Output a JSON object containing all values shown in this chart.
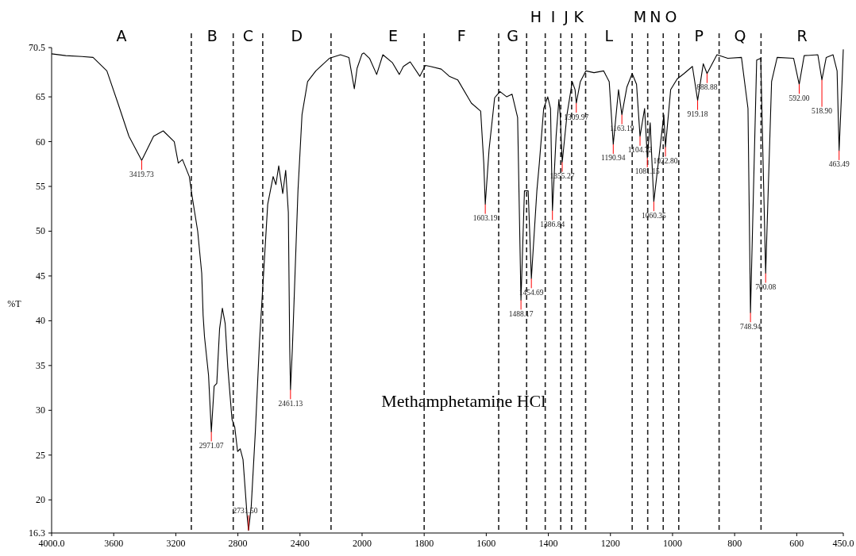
{
  "chart_data": [
    {
      "type": "line",
      "ylabel": "%T",
      "xlim": [
        4000,
        2000
      ],
      "ylim": [
        16.3,
        70.5
      ],
      "xticks": [
        {
          "value": 4000,
          "label": "4000.0"
        },
        3600,
        3200,
        2800,
        2400,
        2000
      ],
      "yticks": [
        16.3,
        20,
        25,
        30,
        35,
        40,
        45,
        50,
        55,
        60,
        65,
        70.5
      ],
      "series": [
        {
          "color": "#000000",
          "x": [
            4000,
            3909,
            3805,
            3733,
            3644,
            3573,
            3502,
            3419.73,
            3343,
            3281,
            3210,
            3184,
            3157,
            3113,
            3095,
            3059,
            3033,
            3024,
            3015,
            2989,
            2971.07,
            2953,
            2936,
            2918,
            2900,
            2882,
            2865,
            2838,
            2820,
            2802,
            2785,
            2767,
            2740,
            2731.5,
            2714,
            2687,
            2661,
            2634,
            2608,
            2573,
            2555,
            2537,
            2511,
            2492,
            2475,
            2466,
            2461.13,
            2449,
            2432,
            2413,
            2387,
            2351,
            2298,
            2211,
            2139,
            2085,
            2050,
            2032,
            2000
          ],
          "values": [
            69.8,
            69.6,
            69.5,
            69.4,
            67.9,
            64.3,
            60.6,
            57.9,
            60.6,
            61.2,
            60.0,
            57.6,
            58.0,
            56.1,
            53.9,
            50.0,
            45.3,
            40.6,
            38.2,
            33.9,
            27.6,
            32.7,
            33.0,
            39.1,
            41.4,
            39.7,
            34.8,
            29.0,
            28.1,
            25.4,
            25.7,
            24.5,
            18.1,
            16.6,
            19.3,
            27.8,
            37.6,
            45.4,
            53.0,
            56.1,
            55.2,
            57.3,
            54.2,
            56.8,
            52.1,
            36.9,
            32.3,
            36.9,
            45.2,
            54.5,
            63.0,
            66.7,
            67.9,
            69.3,
            69.7,
            69.4,
            65.9,
            68.2,
            69.8
          ]
        }
      ],
      "ref_lines": [
        {
          "axis": "x",
          "value": 3100,
          "color": "#222222",
          "line_style": "dashed"
        },
        {
          "axis": "x",
          "value": 2830,
          "color": "#222222",
          "line_style": "dashed"
        },
        {
          "axis": "x",
          "value": 2640,
          "color": "#222222",
          "line_style": "dashed"
        },
        {
          "axis": "x",
          "value": 2200,
          "color": "#222222",
          "line_style": "dashed"
        }
      ],
      "annotations": [
        "A",
        "B",
        "C",
        "D",
        {
          "text": "3419.73",
          "x": 3419.73,
          "y": 57.9
        },
        {
          "text": "2971.07",
          "x": 2971.07,
          "y": 27.6
        },
        {
          "text": "2731.50",
          "x": 2731.5,
          "y": 16.6
        },
        {
          "text": "2461.13",
          "x": 2461.13,
          "y": 32.3
        }
      ]
    },
    {
      "type": "line",
      "title": "Methamphetamine HCl",
      "xlim": [
        2000,
        450
      ],
      "ylim": [
        16.3,
        70.5
      ],
      "tick_labels": "x",
      "xticks": [
        1800,
        1600,
        1400,
        1200,
        1000,
        800,
        600,
        {
          "value": 450,
          "label": "450.0"
        }
      ],
      "series": [
        {
          "color": "#000000",
          "x": [
            2000,
            1994,
            1976,
            1953,
            1933,
            1902,
            1880,
            1867,
            1845,
            1814,
            1796,
            1780,
            1745,
            1719,
            1692,
            1648,
            1618,
            1608,
            1603.19,
            1591,
            1573,
            1556,
            1534,
            1517,
            1499,
            1488.17,
            1477,
            1465,
            1454.69,
            1437,
            1429,
            1415,
            1402,
            1393,
            1386.84,
            1375,
            1366,
            1362,
            1355.27,
            1340,
            1323,
            1314,
            1309.97,
            1297,
            1279,
            1253,
            1222,
            1204,
            1190.94,
            1174,
            1163.19,
            1147,
            1130,
            1116,
            1104.72,
            1090,
            1081.15,
            1072,
            1060.35,
            1046,
            1028,
            1022.8,
            1006,
            985,
            963,
            936,
            919.18,
            901,
            888.88,
            857,
            822,
            778,
            757,
            748.94,
            729,
            716,
            700.08,
            681,
            663,
            610,
            592,
            576,
            532,
            518.9,
            505,
            483,
            470,
            463.49,
            454,
            450
          ],
          "values": [
            69.8,
            69.9,
            69.3,
            67.5,
            69.7,
            68.8,
            67.5,
            68.4,
            68.9,
            67.3,
            68.5,
            68.4,
            68.1,
            67.3,
            66.9,
            64.3,
            63.4,
            57.6,
            53.0,
            59.1,
            64.9,
            65.6,
            65.0,
            65.3,
            62.7,
            42.3,
            54.5,
            54.5,
            44.7,
            54.5,
            57.6,
            63.7,
            65.0,
            63.7,
            52.3,
            60.6,
            64.7,
            63.0,
            57.7,
            63.0,
            66.7,
            65.8,
            64.3,
            66.7,
            67.9,
            67.7,
            67.9,
            66.7,
            59.7,
            65.8,
            63.0,
            66.1,
            67.6,
            66.4,
            60.6,
            63.7,
            58.2,
            62.1,
            53.3,
            57.6,
            63.0,
            59.4,
            65.8,
            67.0,
            67.6,
            68.4,
            64.6,
            68.7,
            67.6,
            69.7,
            69.3,
            69.4,
            63.7,
            40.9,
            69.1,
            69.3,
            45.3,
            66.7,
            69.4,
            69.3,
            66.4,
            69.6,
            69.7,
            66.9,
            69.4,
            69.7,
            67.9,
            59.0,
            66.7,
            70.3
          ]
        }
      ],
      "ref_lines": [
        {
          "axis": "x",
          "value": 1800,
          "color": "#222222",
          "line_style": "dashed"
        },
        {
          "axis": "x",
          "value": 1560,
          "color": "#222222",
          "line_style": "dashed"
        },
        {
          "axis": "x",
          "value": 1470,
          "color": "#222222",
          "line_style": "dashed"
        },
        {
          "axis": "x",
          "value": 1410,
          "color": "#222222",
          "line_style": "dashed"
        },
        {
          "axis": "x",
          "value": 1360,
          "color": "#222222",
          "line_style": "dashed"
        },
        {
          "axis": "x",
          "value": 1325,
          "color": "#222222",
          "line_style": "dashed"
        },
        {
          "axis": "x",
          "value": 1280,
          "color": "#222222",
          "line_style": "dashed"
        },
        {
          "axis": "x",
          "value": 1130,
          "color": "#222222",
          "line_style": "dashed"
        },
        {
          "axis": "x",
          "value": 1080,
          "color": "#222222",
          "line_style": "dashed"
        },
        {
          "axis": "x",
          "value": 1030,
          "color": "#222222",
          "line_style": "dashed"
        },
        {
          "axis": "x",
          "value": 980,
          "color": "#222222",
          "line_style": "dashed"
        },
        {
          "axis": "x",
          "value": 850,
          "color": "#222222",
          "line_style": "dashed"
        },
        {
          "axis": "x",
          "value": 715,
          "color": "#222222",
          "line_style": "dashed"
        }
      ],
      "annotations": [
        "E",
        "F",
        "G",
        "H",
        "I",
        "J",
        "K",
        "L",
        "M",
        "N",
        "O",
        "P",
        "Q",
        "R",
        {
          "text": "1603.19",
          "x": 1603.19,
          "y": 53.0
        },
        {
          "text": "1488.17",
          "x": 1488.17,
          "y": 42.3
        },
        {
          "text": "1454.69",
          "x": 1454.69,
          "y": 44.7
        },
        {
          "text": "1386.84",
          "x": 1386.84,
          "y": 52.3
        },
        {
          "text": "1355.27",
          "x": 1355.27,
          "y": 57.7
        },
        {
          "text": "1309.97",
          "x": 1309.97,
          "y": 64.3
        },
        {
          "text": "1190.94",
          "x": 1190.94,
          "y": 59.7
        },
        {
          "text": "1163.19",
          "x": 1163.19,
          "y": 63.0
        },
        {
          "text": "1104.72",
          "x": 1104.72,
          "y": 60.6
        },
        {
          "text": "1081.15",
          "x": 1081.15,
          "y": 58.2
        },
        {
          "text": "1060.35",
          "x": 1060.35,
          "y": 53.3
        },
        {
          "text": "1022.80",
          "x": 1022.8,
          "y": 59.4
        },
        {
          "text": "919.18",
          "x": 919.18,
          "y": 64.6
        },
        {
          "text": "888.88",
          "x": 888.88,
          "y": 67.6
        },
        {
          "text": "748.94",
          "x": 748.94,
          "y": 40.9
        },
        {
          "text": "700.08",
          "x": 700.08,
          "y": 45.3
        },
        {
          "text": "592.00",
          "x": 592,
          "y": 66.4
        },
        {
          "text": "518.90",
          "x": 518.9,
          "y": 66.9
        },
        {
          "text": "463.49",
          "x": 463.49,
          "y": 59.0
        }
      ]
    }
  ]
}
